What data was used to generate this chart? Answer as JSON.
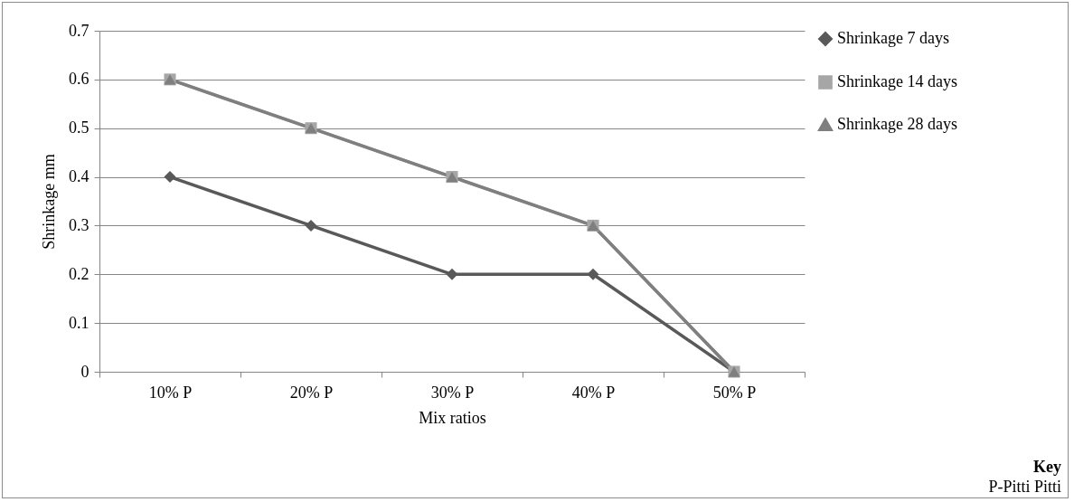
{
  "chart_data": {
    "type": "line",
    "xlabel": "Mix ratios",
    "ylabel": "Shrinkage mm",
    "categories": [
      "10% P",
      "20% P",
      "30% P",
      "40% P",
      "50% P"
    ],
    "series": [
      {
        "name": "Shrinkage 7 days",
        "color": "#595959",
        "marker": "diamond",
        "values": [
          0.4,
          0.3,
          0.2,
          0.2,
          0
        ]
      },
      {
        "name": "Shrinkage 14 days",
        "color": "#a6a6a6",
        "marker": "square",
        "values": [
          0.6,
          0.5,
          0.4,
          0.3,
          0
        ]
      },
      {
        "name": "Shrinkage 28 days",
        "color": "#7f7f7f",
        "marker": "triangle",
        "values": [
          0.6,
          0.5,
          0.4,
          0.3,
          0
        ]
      }
    ],
    "ylim": [
      0,
      0.7
    ],
    "yticks": [
      0,
      0.1,
      0.2,
      0.3,
      0.4,
      0.5,
      0.6,
      0.7
    ],
    "grid": "y",
    "legend": "right",
    "line_style": "solid",
    "annotations": [
      "Key",
      "P-Pitti Pitti"
    ]
  }
}
